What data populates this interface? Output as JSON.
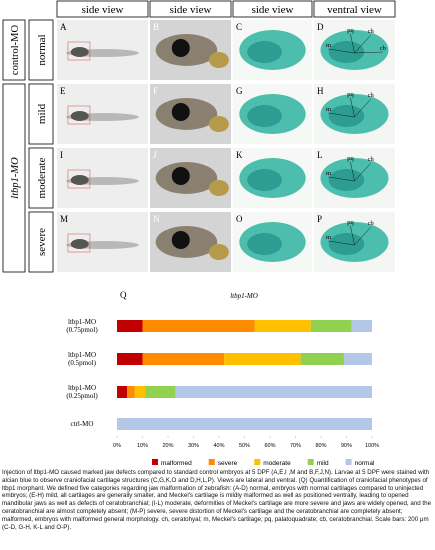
{
  "figure": {
    "column_headers": [
      "side view",
      "side view",
      "side view",
      "ventral view"
    ],
    "groups": [
      "control-MO",
      "ltbp1-MO"
    ],
    "row_labels": [
      "normal",
      "mild",
      "moderate",
      "severe"
    ],
    "panels": [
      {
        "letter": "A"
      },
      {
        "letter": "B"
      },
      {
        "letter": "C"
      },
      {
        "letter": "D",
        "annotations": [
          "pq",
          "ch",
          "m",
          "cb"
        ]
      },
      {
        "letter": "E"
      },
      {
        "letter": "F"
      },
      {
        "letter": "G"
      },
      {
        "letter": "H",
        "annotations": [
          "pq",
          "ch",
          "m"
        ]
      },
      {
        "letter": "I"
      },
      {
        "letter": "J"
      },
      {
        "letter": "K"
      },
      {
        "letter": "L",
        "annotations": [
          "pq",
          "ch",
          "m"
        ]
      },
      {
        "letter": "M"
      },
      {
        "letter": "N"
      },
      {
        "letter": "O"
      },
      {
        "letter": "P",
        "annotations": [
          "pq",
          "cb",
          "m"
        ]
      }
    ]
  },
  "chart_data": {
    "type": "bar",
    "orientation": "horizontal",
    "stacked": true,
    "panel_letter": "Q",
    "title": "ltbp1-MO",
    "categories": [
      "ltbp1-MO\n(0.75pmol)",
      "ltbp1-MO\n(0.5pmol)",
      "ltbp1-MO\n(0.25pmol)",
      "ctrl-MO"
    ],
    "series": [
      {
        "name": "malformed",
        "color": "#c00000",
        "values": [
          10,
          10,
          4,
          0
        ]
      },
      {
        "name": "severe",
        "color": "#ff8c00",
        "values": [
          44,
          32,
          3,
          0
        ]
      },
      {
        "name": "moderate",
        "color": "#ffc000",
        "values": [
          22,
          30,
          4,
          0
        ]
      },
      {
        "name": "mild",
        "color": "#92d050",
        "values": [
          16,
          17,
          12,
          0
        ]
      },
      {
        "name": "normal",
        "color": "#b4c7e7",
        "values": [
          8,
          11,
          77,
          100
        ]
      }
    ],
    "xlim": [
      0,
      100
    ],
    "xticks": [
      {
        "value": 0,
        "label": "0%"
      },
      {
        "value": 10,
        "label": "10%"
      },
      {
        "value": 20,
        "label": "20%"
      },
      {
        "value": 30,
        "label": "30%"
      },
      {
        "value": 40,
        "label": "40%"
      },
      {
        "value": 50,
        "label": "50%"
      },
      {
        "value": 60,
        "label": "60%"
      },
      {
        "value": 70,
        "label": "70%"
      },
      {
        "value": 80,
        "label": "80%"
      },
      {
        "value": 90,
        "label": "90%"
      },
      {
        "value": 100,
        "label": "100%"
      }
    ],
    "legend": "bottom"
  },
  "caption": "Injection of ltbp1-MO caused marked jaw defects compared to standard control embryos at 5 DPF (A,E,I ,M and B,F,J,N). Larvae at 5 DPF were stained with alcian blue to observe craniofacial cartilage structures (C,G,K,O and D,H,L,P). Views are lateral and ventral. (Q) Quantification of craniofacial phenotypes of ltbp1 morphant. We defined five categories regarding jaw malformation of zebrafish: (A-D) normal, embryos with normal cartilages compared to uninjected embryos; (E-H) mild, all cartilages are generally smaller, and Meckel's cartilage is mildly malformed as well as positioned ventrally, leading to opened mandibular jaws as well as defects of ceratobranchial; (I-L) moderate, deformities of Meckel's cartilage are more severe and jaws are widely opened, and the ceratobranchial are almost completely absent; (M-P) severe, severe distortion of Meckel's cartilage and the ceratobranchial are completely absent; malformed, embryos with malformed general morphology. ch, ceratohyal; m, Meckel's cartilage; pq, palatoquadrate; cb, ceratobranchial. Scale bars: 200 μm (C-D, G-H, K-L and O-P)."
}
